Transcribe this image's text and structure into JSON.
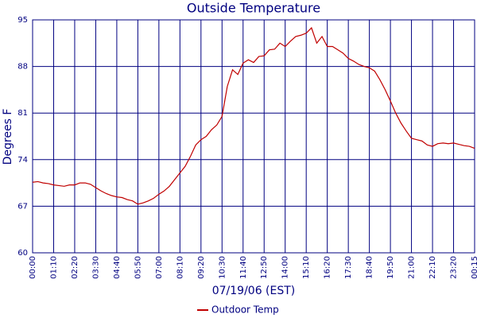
{
  "chart_data": {
    "type": "line",
    "title": "Outside Temperature",
    "x_label": "07/19/06 (EST)",
    "y_label": "Degrees F",
    "categories": [
      "00:00",
      null,
      null,
      null,
      "01:10",
      null,
      null,
      null,
      "02:20",
      null,
      null,
      null,
      "03:30",
      null,
      null,
      null,
      "04:40",
      null,
      null,
      null,
      "05:50",
      null,
      null,
      null,
      "07:00",
      null,
      null,
      null,
      "08:10",
      null,
      null,
      null,
      "09:20",
      null,
      null,
      null,
      "10:30",
      null,
      null,
      null,
      "11:40",
      null,
      null,
      null,
      "12:50",
      null,
      null,
      null,
      "14:00",
      null,
      null,
      null,
      "15:10",
      null,
      null,
      null,
      "16:20",
      null,
      null,
      null,
      "17:30",
      null,
      null,
      null,
      "18:40",
      null,
      null,
      null,
      "19:50",
      null,
      null,
      null,
      "21:00",
      null,
      null,
      null,
      "22:10",
      null,
      null,
      null,
      "23:20",
      null,
      null,
      null,
      "00:15"
    ],
    "series": [
      {
        "name": "Outdoor Temp",
        "color": "#c00000",
        "values": [
          70.6,
          70.7,
          70.5,
          70.4,
          70.2,
          70.1,
          70.0,
          70.2,
          70.2,
          70.5,
          70.5,
          70.3,
          69.8,
          69.3,
          68.9,
          68.6,
          68.4,
          68.3,
          68.0,
          67.8,
          67.3,
          67.5,
          67.8,
          68.2,
          68.8,
          69.3,
          70.0,
          71.0,
          72.0,
          73.0,
          74.5,
          76.2,
          77.0,
          77.5,
          78.5,
          79.2,
          80.5,
          85.0,
          87.5,
          86.8,
          88.5,
          89.0,
          88.6,
          89.5,
          89.6,
          90.5,
          90.6,
          91.5,
          91.0,
          91.8,
          92.5,
          92.7,
          93.0,
          93.8,
          91.5,
          92.5,
          91.0,
          91.0,
          90.5,
          90.0,
          89.2,
          88.8,
          88.3,
          88.0,
          87.8,
          87.3,
          86.0,
          84.5,
          82.8,
          81.0,
          79.5,
          78.3,
          77.2,
          77.0,
          76.8,
          76.2,
          76.0,
          76.4,
          76.5,
          76.4,
          76.5,
          76.3,
          76.1,
          76.0,
          75.7
        ]
      }
    ],
    "ylim": [
      60,
      95
    ],
    "yticks": [
      60,
      67,
      74,
      81,
      88,
      95
    ],
    "grid": true,
    "legend": "bottom"
  }
}
